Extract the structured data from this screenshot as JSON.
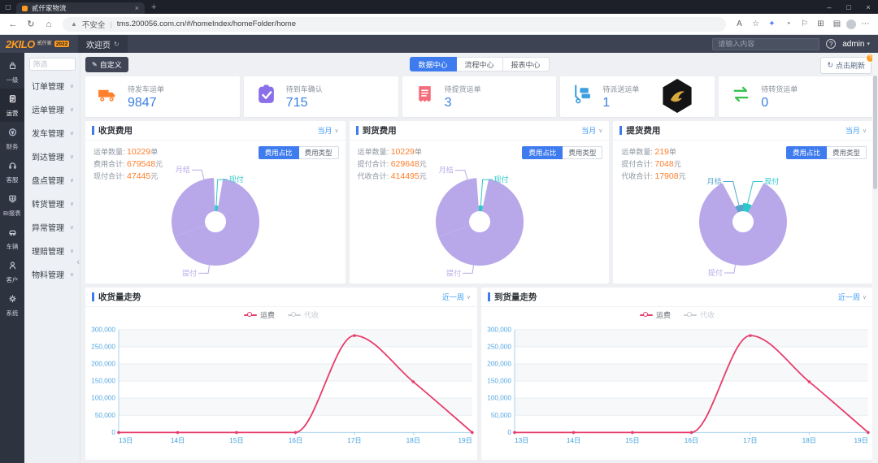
{
  "icons": {
    "tab_menu": "▢",
    "new_tab": "+",
    "tab_close": "×",
    "minimize": "–",
    "maximize": "□",
    "close": "×",
    "back": "←",
    "refresh": "↻",
    "home": "⌂",
    "warning": "▲",
    "divider": "|",
    "read_aloud": "A",
    "star": "☆",
    "extension": "✦",
    "history": "◔",
    "flag": "⚐",
    "collections": "⊞",
    "split": "▤",
    "more": "⋯",
    "chevron_down": "∨",
    "chevron_left": "‹",
    "help": "?",
    "edit": "✎",
    "user_caret": "▾"
  },
  "browser": {
    "tab_title": "贰仟家物流",
    "security_text": "不安全",
    "url": "tms.200056.com.cn/#/homeIndex/homeFolder/home"
  },
  "app_header": {
    "logo_main": "2KILO",
    "logo_sub": "贰仟家",
    "logo_badge": "2022",
    "welcome_tab": "欢迎页",
    "search_placeholder": "请输入内容",
    "user": "admin"
  },
  "rail": {
    "items": [
      {
        "label": "一级",
        "icon": "lock",
        "active": false
      },
      {
        "label": "运营",
        "icon": "operations",
        "active": true
      },
      {
        "label": "财务",
        "icon": "finance",
        "active": false
      },
      {
        "label": "客服",
        "icon": "service",
        "active": false
      },
      {
        "label": "BI报表",
        "icon": "report",
        "active": false
      },
      {
        "label": "车辆",
        "icon": "vehicle",
        "active": false
      },
      {
        "label": "客户",
        "icon": "customer",
        "active": false
      },
      {
        "label": "系统",
        "icon": "system",
        "active": false
      }
    ]
  },
  "sidebar": {
    "filter_placeholder": "筛选",
    "items": [
      "订单管理",
      "运单管理",
      "发车管理",
      "到达管理",
      "盘点管理",
      "转货管理",
      "异常管理",
      "理赔管理",
      "物料管理"
    ]
  },
  "toolbar": {
    "customize_label": "自定义",
    "tabs": [
      {
        "label": "数据中心",
        "active": true
      },
      {
        "label": "流程中心",
        "active": false
      },
      {
        "label": "报表中心",
        "active": false
      }
    ],
    "refresh_label": "点击刷新",
    "refresh_badge": "?"
  },
  "stat_cards": [
    {
      "title": "待发车运单",
      "value": "9847",
      "icon": "truck",
      "color": "#ff7f2a"
    },
    {
      "title": "待到车确认",
      "value": "715",
      "icon": "clipboard",
      "color": "#8b6fe8"
    },
    {
      "title": "待提货运单",
      "value": "3",
      "icon": "receipt",
      "color": "#f56c7b"
    },
    {
      "title": "待派送运单",
      "value": "1",
      "icon": "dolly",
      "color": "#3d9fe0"
    },
    {
      "title": "待转货运单",
      "value": "0",
      "icon": "transfer",
      "color": "#35c24d"
    }
  ],
  "chart_data": [
    {
      "id": "fee-receive",
      "type": "pie",
      "title": "收货费用",
      "period": "当月",
      "stats": [
        {
          "label": "运单数量:",
          "value": "10229",
          "unit": "单"
        },
        {
          "label": "费用合计:",
          "value": "679548",
          "unit": "元"
        },
        {
          "label": "现付合计:",
          "value": "47445",
          "unit": "元"
        }
      ],
      "toggle": [
        {
          "label": "费用占比",
          "active": true
        },
        {
          "label": "费用类型",
          "active": false
        }
      ],
      "hole": 13,
      "slices": [
        {
          "name": "提付",
          "color": "#b9a8e9",
          "start": 10,
          "end": 250,
          "r": 54,
          "label": {
            "angle": 188,
            "ext": 10,
            "side": "left"
          }
        },
        {
          "name": "月结",
          "color": "#b9a8e9",
          "start": 250,
          "end": 358,
          "r": 54,
          "label": {
            "angle": 345,
            "ext": 12,
            "side": "left"
          }
        },
        {
          "name": "现付",
          "color": "#2ec7c9",
          "start": 358,
          "end": 370,
          "r": 20,
          "label": {
            "angle": 3,
            "ext": 32,
            "side": "right"
          }
        }
      ]
    },
    {
      "id": "fee-arrive",
      "type": "pie",
      "title": "到货费用",
      "period": "当月",
      "stats": [
        {
          "label": "运单数量:",
          "value": "10229",
          "unit": "单"
        },
        {
          "label": "提付合计:",
          "value": "629648",
          "unit": "元"
        },
        {
          "label": "代收合计:",
          "value": "414495",
          "unit": "元"
        }
      ],
      "toggle": [
        {
          "label": "费用占比",
          "active": true
        },
        {
          "label": "费用类型",
          "active": false
        }
      ],
      "hole": 13,
      "slices": [
        {
          "name": "提付",
          "color": "#b9a8e9",
          "start": 12,
          "end": 250,
          "r": 54,
          "label": {
            "angle": 188,
            "ext": 10,
            "side": "left"
          }
        },
        {
          "name": "月结",
          "color": "#b9a8e9",
          "start": 250,
          "end": 356,
          "r": 54,
          "label": {
            "angle": 344,
            "ext": 12,
            "side": "left"
          }
        },
        {
          "name": "现付",
          "color": "#2ec7c9",
          "start": 356,
          "end": 372,
          "r": 20,
          "label": {
            "angle": 4,
            "ext": 32,
            "side": "right"
          }
        }
      ]
    },
    {
      "id": "fee-pickup",
      "type": "pie",
      "title": "提货费用",
      "period": "当月",
      "stats": [
        {
          "label": "运单数量:",
          "value": "219",
          "unit": "单"
        },
        {
          "label": "提付合计:",
          "value": "7048",
          "unit": "元"
        },
        {
          "label": "代收合计:",
          "value": "17908",
          "unit": "元"
        }
      ],
      "toggle": [
        {
          "label": "费用占比",
          "active": true
        },
        {
          "label": "费用类型",
          "active": false
        }
      ],
      "hole": 13,
      "slices": [
        {
          "name": "提付",
          "color": "#b9a8e9",
          "start": 28,
          "end": 332,
          "r": 54,
          "label": {
            "angle": 190,
            "ext": 10,
            "side": "left"
          }
        },
        {
          "name": "月结",
          "color": "#58a3cf",
          "start": 332,
          "end": 360,
          "r": 21,
          "label": {
            "angle": 346,
            "ext": 30,
            "side": "left"
          }
        },
        {
          "name": "现付",
          "color": "#2ec7c9",
          "start": 0,
          "end": 28,
          "r": 23,
          "label": {
            "angle": 14,
            "ext": 28,
            "side": "right"
          }
        }
      ]
    },
    {
      "id": "trend-receive",
      "type": "line",
      "title": "收货量走势",
      "period": "近一周",
      "legend": [
        {
          "name": "运费",
          "color": "#e73d6b",
          "active": true
        },
        {
          "name": "代收",
          "color": "#c9ced6",
          "active": false
        }
      ],
      "x": [
        "13日",
        "14日",
        "15日",
        "16日",
        "17日",
        "18日",
        "19日"
      ],
      "series": [
        {
          "name": "运费",
          "color": "#e73d6b",
          "values": [
            0,
            0,
            0,
            0,
            283000,
            148000,
            0
          ]
        }
      ],
      "ylim": [
        0,
        300000
      ],
      "yticks": [
        "0",
        "50,000",
        "100,000",
        "150,000",
        "200,000",
        "250,000",
        "300,000"
      ],
      "grid": true,
      "legend_position": "top"
    },
    {
      "id": "trend-arrive",
      "type": "line",
      "title": "到货量走势",
      "period": "近一周",
      "legend": [
        {
          "name": "运费",
          "color": "#e73d6b",
          "active": true
        },
        {
          "name": "代收",
          "color": "#c9ced6",
          "active": false
        }
      ],
      "x": [
        "13日",
        "14日",
        "15日",
        "16日",
        "17日",
        "18日",
        "19日"
      ],
      "series": [
        {
          "name": "运费",
          "color": "#e73d6b",
          "values": [
            0,
            0,
            0,
            0,
            283000,
            148000,
            0
          ]
        }
      ],
      "ylim": [
        0,
        300000
      ],
      "yticks": [
        "0",
        "50,000",
        "100,000",
        "150,000",
        "200,000",
        "250,000",
        "300,000"
      ],
      "grid": true,
      "legend_position": "top"
    }
  ],
  "colors": {
    "accent_blue": "#3e7bee",
    "value_blue": "#3a7fe0",
    "value_orange": "#ff7d2b",
    "pie_purple": "#b9a8e9",
    "pie_teal": "#2ec7c9",
    "line_pink": "#e73d6b",
    "axis_label_blue": "#55a8e2",
    "x_label_blue": "#3d9fdb"
  }
}
